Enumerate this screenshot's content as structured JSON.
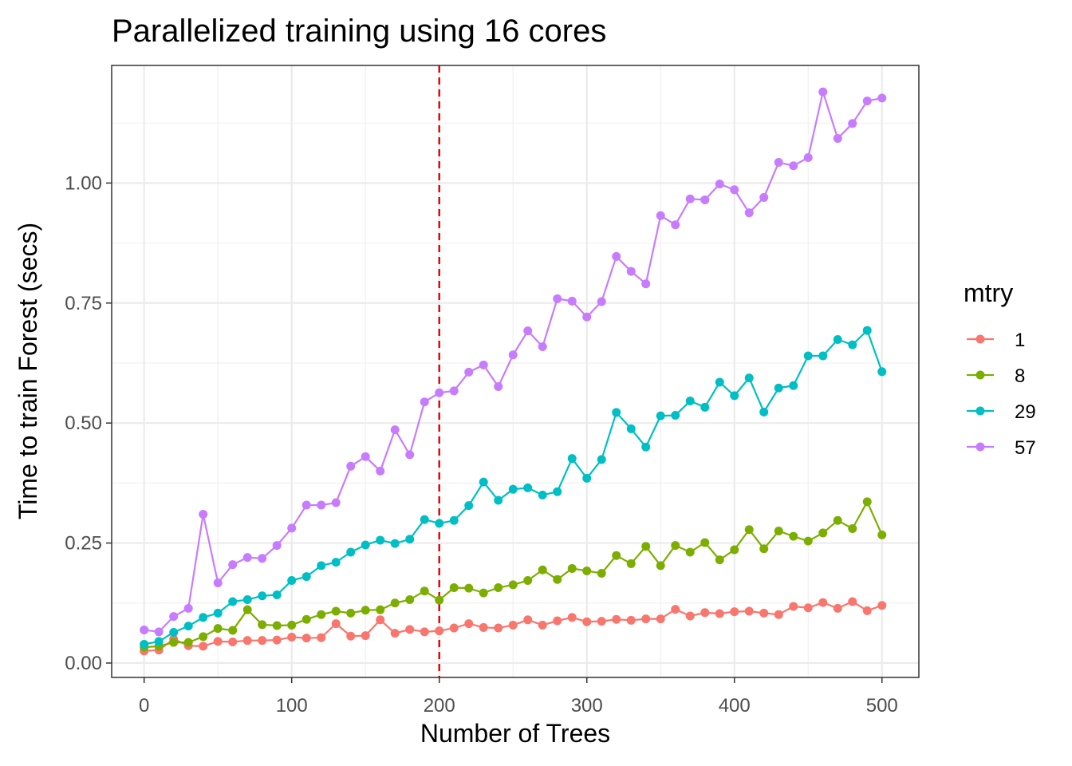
{
  "chart_data": {
    "type": "line",
    "title": "Parallelized training using 16 cores",
    "xlabel": "Number of Trees",
    "ylabel": "Time to train Forest (secs)",
    "xlim": [
      -22,
      525
    ],
    "ylim": [
      -0.03,
      1.245
    ],
    "xticks": [
      0,
      100,
      200,
      300,
      400,
      500
    ],
    "xtick_labels": [
      "0",
      "100",
      "200",
      "300",
      "400",
      "500"
    ],
    "yticks": [
      0,
      0.25,
      0.5,
      0.75,
      1.0
    ],
    "ytick_labels": [
      "0.00",
      "0.25",
      "0.50",
      "0.75",
      "1.00"
    ],
    "grid": true,
    "vline": {
      "x": 200,
      "color": "#e00000",
      "style": "dashed"
    },
    "legend": {
      "title": "mtry",
      "position": "right"
    },
    "x": [
      0,
      10,
      20,
      30,
      40,
      50,
      60,
      70,
      80,
      90,
      100,
      110,
      120,
      130,
      140,
      150,
      160,
      170,
      180,
      190,
      200,
      210,
      220,
      230,
      240,
      250,
      260,
      270,
      280,
      290,
      300,
      310,
      320,
      330,
      340,
      350,
      360,
      370,
      380,
      390,
      400,
      410,
      420,
      430,
      440,
      450,
      460,
      470,
      480,
      490,
      500
    ],
    "series": [
      {
        "name": "1",
        "color": "#F8766D",
        "values": [
          0.025,
          0.027,
          0.05,
          0.036,
          0.035,
          0.045,
          0.044,
          0.047,
          0.047,
          0.048,
          0.054,
          0.052,
          0.053,
          0.082,
          0.056,
          0.057,
          0.09,
          0.062,
          0.07,
          0.065,
          0.067,
          0.073,
          0.082,
          0.074,
          0.073,
          0.079,
          0.09,
          0.079,
          0.088,
          0.095,
          0.086,
          0.087,
          0.091,
          0.089,
          0.092,
          0.092,
          0.112,
          0.098,
          0.105,
          0.103,
          0.107,
          0.108,
          0.104,
          0.101,
          0.118,
          0.115,
          0.126,
          0.114,
          0.128,
          0.109,
          0.12
        ]
      },
      {
        "name": "8",
        "color": "#7CAE00",
        "values": [
          0.033,
          0.035,
          0.043,
          0.043,
          0.055,
          0.072,
          0.068,
          0.111,
          0.08,
          0.078,
          0.079,
          0.091,
          0.101,
          0.108,
          0.104,
          0.11,
          0.111,
          0.125,
          0.132,
          0.15,
          0.131,
          0.157,
          0.156,
          0.146,
          0.157,
          0.163,
          0.172,
          0.194,
          0.174,
          0.197,
          0.192,
          0.187,
          0.224,
          0.207,
          0.243,
          0.203,
          0.245,
          0.231,
          0.251,
          0.215,
          0.236,
          0.278,
          0.238,
          0.275,
          0.264,
          0.254,
          0.271,
          0.297,
          0.28,
          0.336,
          0.267
        ]
      },
      {
        "name": "29",
        "color": "#00BFC4",
        "values": [
          0.039,
          0.045,
          0.064,
          0.077,
          0.095,
          0.104,
          0.128,
          0.132,
          0.14,
          0.142,
          0.172,
          0.18,
          0.203,
          0.21,
          0.231,
          0.246,
          0.256,
          0.249,
          0.258,
          0.299,
          0.291,
          0.297,
          0.328,
          0.377,
          0.339,
          0.362,
          0.365,
          0.35,
          0.357,
          0.426,
          0.385,
          0.424,
          0.522,
          0.488,
          0.45,
          0.515,
          0.516,
          0.546,
          0.533,
          0.585,
          0.557,
          0.594,
          0.523,
          0.573,
          0.578,
          0.64,
          0.64,
          0.674,
          0.663,
          0.693,
          0.607
        ]
      },
      {
        "name": "57",
        "color": "#C77CFF",
        "values": [
          0.069,
          0.065,
          0.097,
          0.114,
          0.31,
          0.167,
          0.205,
          0.22,
          0.218,
          0.245,
          0.281,
          0.329,
          0.329,
          0.334,
          0.41,
          0.43,
          0.4,
          0.486,
          0.434,
          0.544,
          0.563,
          0.567,
          0.606,
          0.621,
          0.576,
          0.642,
          0.692,
          0.659,
          0.759,
          0.754,
          0.721,
          0.753,
          0.847,
          0.816,
          0.79,
          0.932,
          0.913,
          0.967,
          0.965,
          0.998,
          0.986,
          0.938,
          0.97,
          1.043,
          1.036,
          1.053,
          1.19,
          1.093,
          1.124,
          1.171,
          1.177
        ]
      }
    ]
  }
}
